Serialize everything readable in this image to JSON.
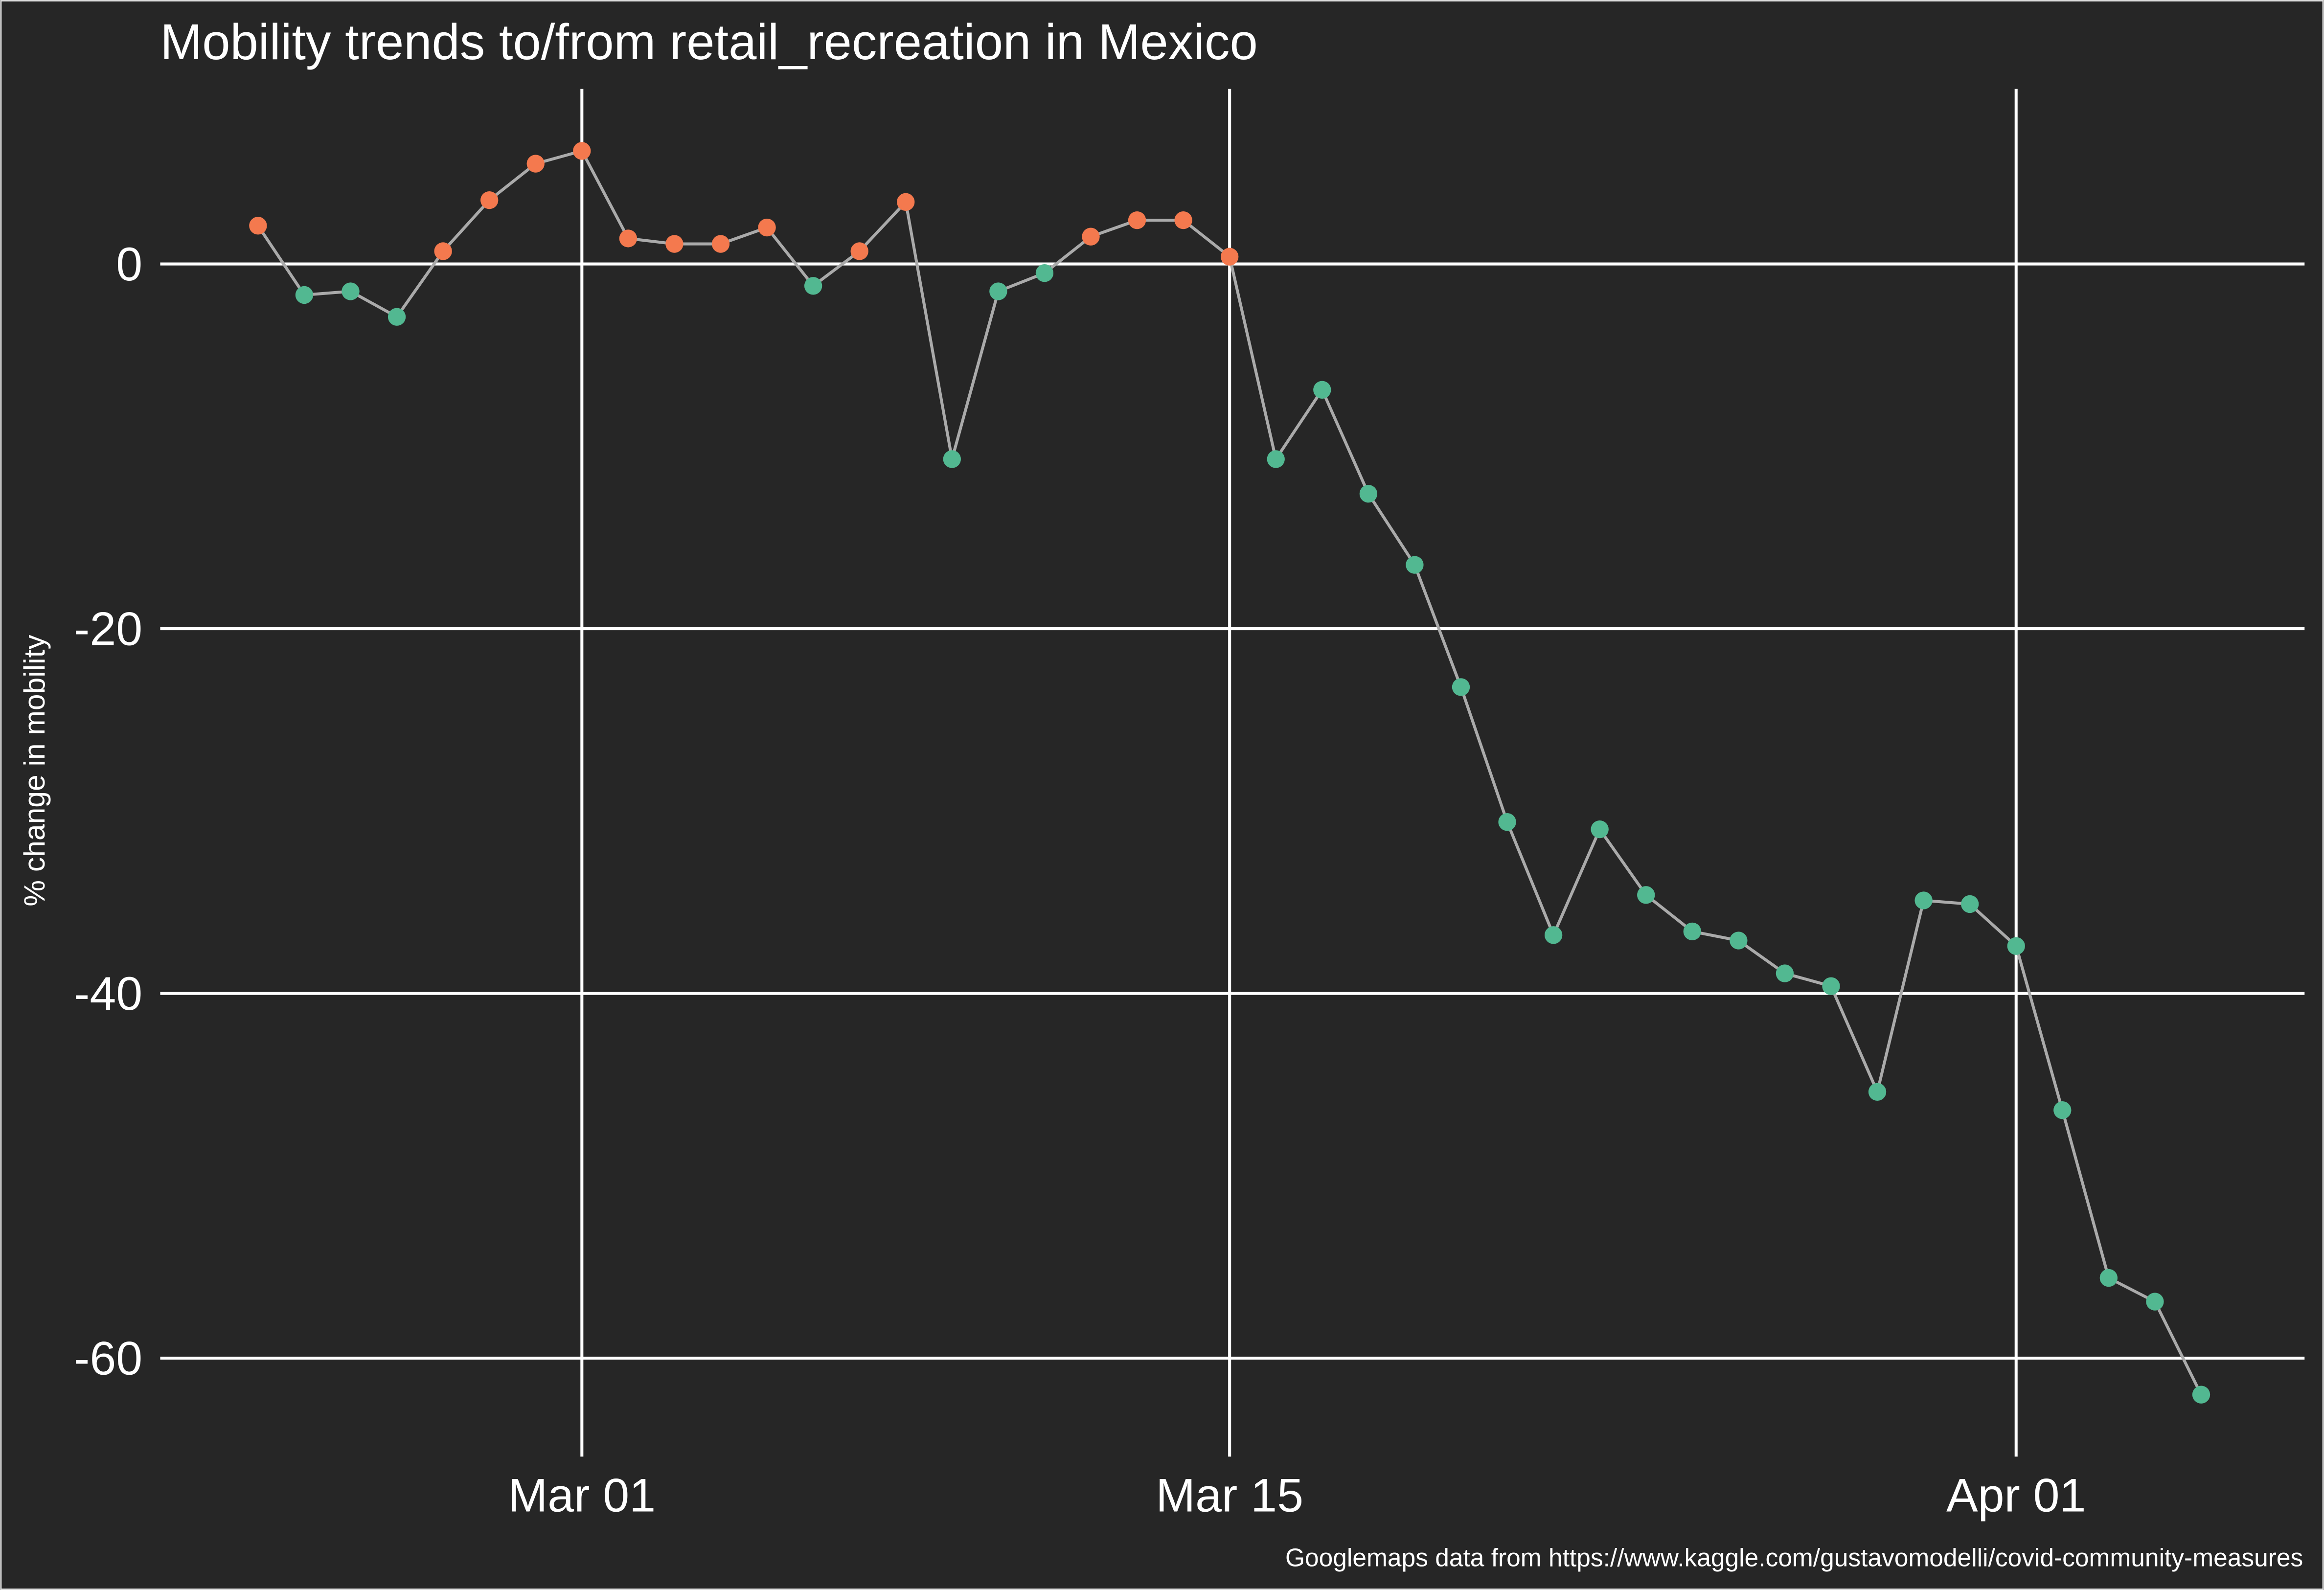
{
  "chart_data": {
    "type": "line",
    "title": "Mobility trends to/from retail_recreation in Mexico",
    "y_label": "% change in mobility",
    "caption": "Googlemaps data from https://www.kaggle.com/gustavomodelli/covid-community-measures",
    "x": [
      "Feb 23",
      "Feb 24",
      "Feb 25",
      "Feb 26",
      "Feb 27",
      "Feb 28",
      "Feb 29",
      "Mar 01",
      "Mar 02",
      "Mar 03",
      "Mar 04",
      "Mar 05",
      "Mar 06",
      "Mar 07",
      "Mar 08",
      "Mar 09",
      "Mar 10",
      "Mar 11",
      "Mar 12",
      "Mar 13",
      "Mar 14",
      "Mar 15",
      "Mar 16",
      "Mar 17",
      "Mar 18",
      "Mar 19",
      "Mar 20",
      "Mar 21",
      "Mar 22",
      "Mar 23",
      "Mar 24",
      "Mar 25",
      "Mar 26",
      "Mar 27",
      "Mar 28",
      "Mar 29",
      "Mar 30",
      "Mar 31",
      "Apr 01",
      "Apr 02",
      "Apr 03",
      "Apr 04",
      "Apr 05"
    ],
    "values": [
      2.1,
      -1.7,
      -1.5,
      -2.9,
      0.7,
      3.5,
      5.5,
      6.2,
      1.4,
      1.1,
      1.1,
      2.0,
      -1.2,
      0.7,
      3.4,
      -10.7,
      -1.5,
      -0.5,
      1.5,
      2.4,
      2.4,
      0.4,
      -10.7,
      -6.9,
      -12.6,
      -16.5,
      -23.2,
      -30.6,
      -36.8,
      -31.0,
      -34.6,
      -36.6,
      -37.1,
      -38.9,
      -39.6,
      -45.4,
      -34.9,
      -35.1,
      -37.4,
      -46.4,
      -55.6,
      -56.9,
      -62.0
    ],
    "line_color": "#aaaaaa",
    "marker_colors": {
      "positive": "#f4794e",
      "negative": "#52b891"
    },
    "xticks": [
      "Mar 01",
      "Mar 15",
      "Apr 01"
    ],
    "ylim": [
      -65.4,
      9.6
    ],
    "yticks": [
      -60,
      -40,
      -20,
      0
    ],
    "grid": true
  }
}
